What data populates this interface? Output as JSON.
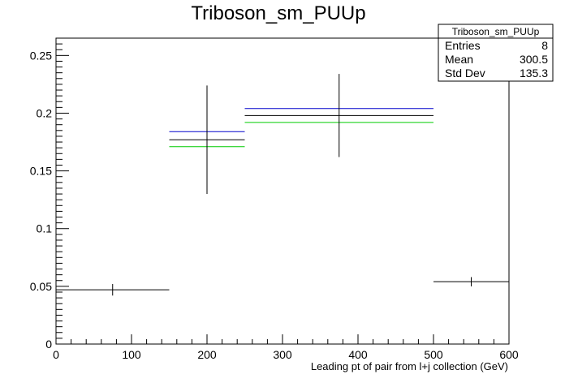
{
  "chart_data": {
    "type": "bar",
    "title": "Triboson_sm_PUUp",
    "xlabel": "Leading pt of pair from l+j collection (GeV)",
    "ylabel": "",
    "xlim": [
      0,
      600
    ],
    "ylim": [
      0,
      0.265
    ],
    "x_ticks": [
      "0",
      "100",
      "200",
      "300",
      "400",
      "500",
      "600"
    ],
    "y_ticks": [
      "0",
      "0.05",
      "0.1",
      "0.15",
      "0.2",
      "0.25"
    ],
    "grid": false,
    "bins": [
      {
        "x_low": 0,
        "x_high": 150,
        "x_center": 75,
        "y": 0.047,
        "err": 0.005
      },
      {
        "x_low": 150,
        "x_high": 250,
        "x_center": 200,
        "y": 0.177,
        "err": 0.047
      },
      {
        "x_low": 250,
        "x_high": 500,
        "x_center": 375,
        "y": 0.198,
        "err": 0.036
      },
      {
        "x_low": 500,
        "x_high": 600,
        "x_center": 550,
        "y": 0.054,
        "err": 0.004
      }
    ],
    "series": [
      {
        "color": "#000000",
        "values": [
          0.047,
          0.177,
          0.198,
          0.054
        ]
      },
      {
        "color": "#0000cc",
        "values": [
          null,
          0.184,
          0.204,
          null
        ]
      },
      {
        "color": "#00cc00",
        "values": [
          null,
          0.171,
          0.192,
          null
        ]
      }
    ],
    "stats_box": {
      "title": "Triboson_sm_PUUp",
      "position": "top-right",
      "rows": [
        {
          "label": "Entries",
          "value": "8"
        },
        {
          "label": "Mean",
          "value": "300.5"
        },
        {
          "label": "Std Dev",
          "value": "135.3"
        }
      ]
    }
  }
}
